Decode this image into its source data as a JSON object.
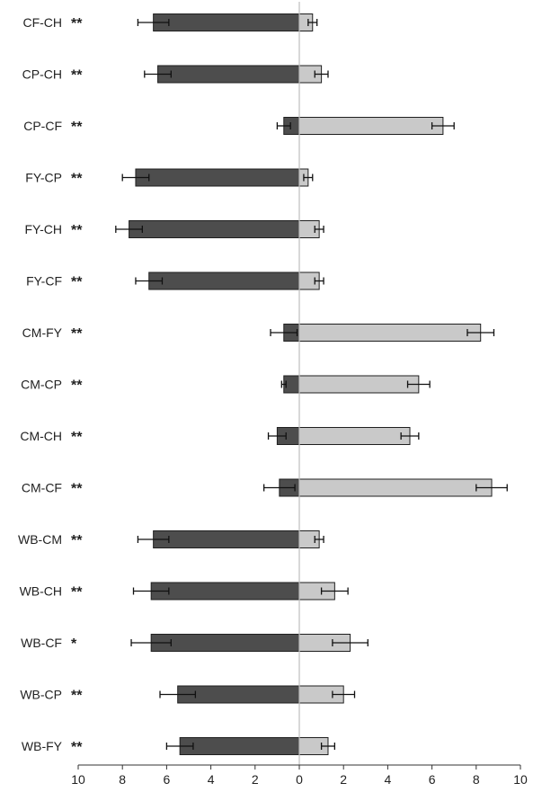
{
  "chart_data": {
    "type": "bar",
    "orientation": "horizontal",
    "layout": "diverging",
    "xlim": [
      -10,
      10
    ],
    "x_tick_labels": [
      "10",
      "8",
      "6",
      "4",
      "2",
      "0",
      "2",
      "4",
      "6",
      "8",
      "10"
    ],
    "grid": false,
    "legend": "none",
    "colors": {
      "left": "#4d4d4d",
      "right": "#c9c9c9",
      "center_line": "#bdbdbd",
      "bar_border": "#1f1f1f"
    },
    "categories": [
      "CF-CH",
      "CP-CH",
      "CP-CF",
      "FY-CP",
      "FY-CH",
      "FY-CF",
      "CM-FY",
      "CM-CP",
      "CM-CH",
      "CM-CF",
      "WB-CM",
      "WB-CH",
      "WB-CF",
      "WB-CP",
      "WB-FY"
    ],
    "significance": [
      "**",
      "**",
      "**",
      "**",
      "**",
      "**",
      "**",
      "**",
      "**",
      "**",
      "**",
      "**",
      "*",
      "**",
      "**"
    ],
    "series": [
      {
        "values": [
          6.6,
          6.4,
          0.7,
          7.4,
          7.7,
          6.8,
          0.7,
          0.7,
          1.0,
          0.9,
          6.6,
          6.7,
          6.7,
          5.5,
          5.4
        ],
        "errors": [
          0.7,
          0.6,
          0.3,
          0.6,
          0.6,
          0.6,
          0.6,
          0.1,
          0.4,
          0.7,
          0.7,
          0.8,
          0.9,
          0.8,
          0.6
        ]
      },
      {
        "values": [
          0.6,
          1.0,
          6.5,
          0.4,
          0.9,
          0.9,
          8.2,
          5.4,
          5.0,
          8.7,
          0.9,
          1.6,
          2.3,
          2.0,
          1.3
        ],
        "errors": [
          0.2,
          0.3,
          0.5,
          0.2,
          0.2,
          0.2,
          0.6,
          0.5,
          0.4,
          0.7,
          0.2,
          0.6,
          0.8,
          0.5,
          0.3
        ]
      }
    ]
  }
}
